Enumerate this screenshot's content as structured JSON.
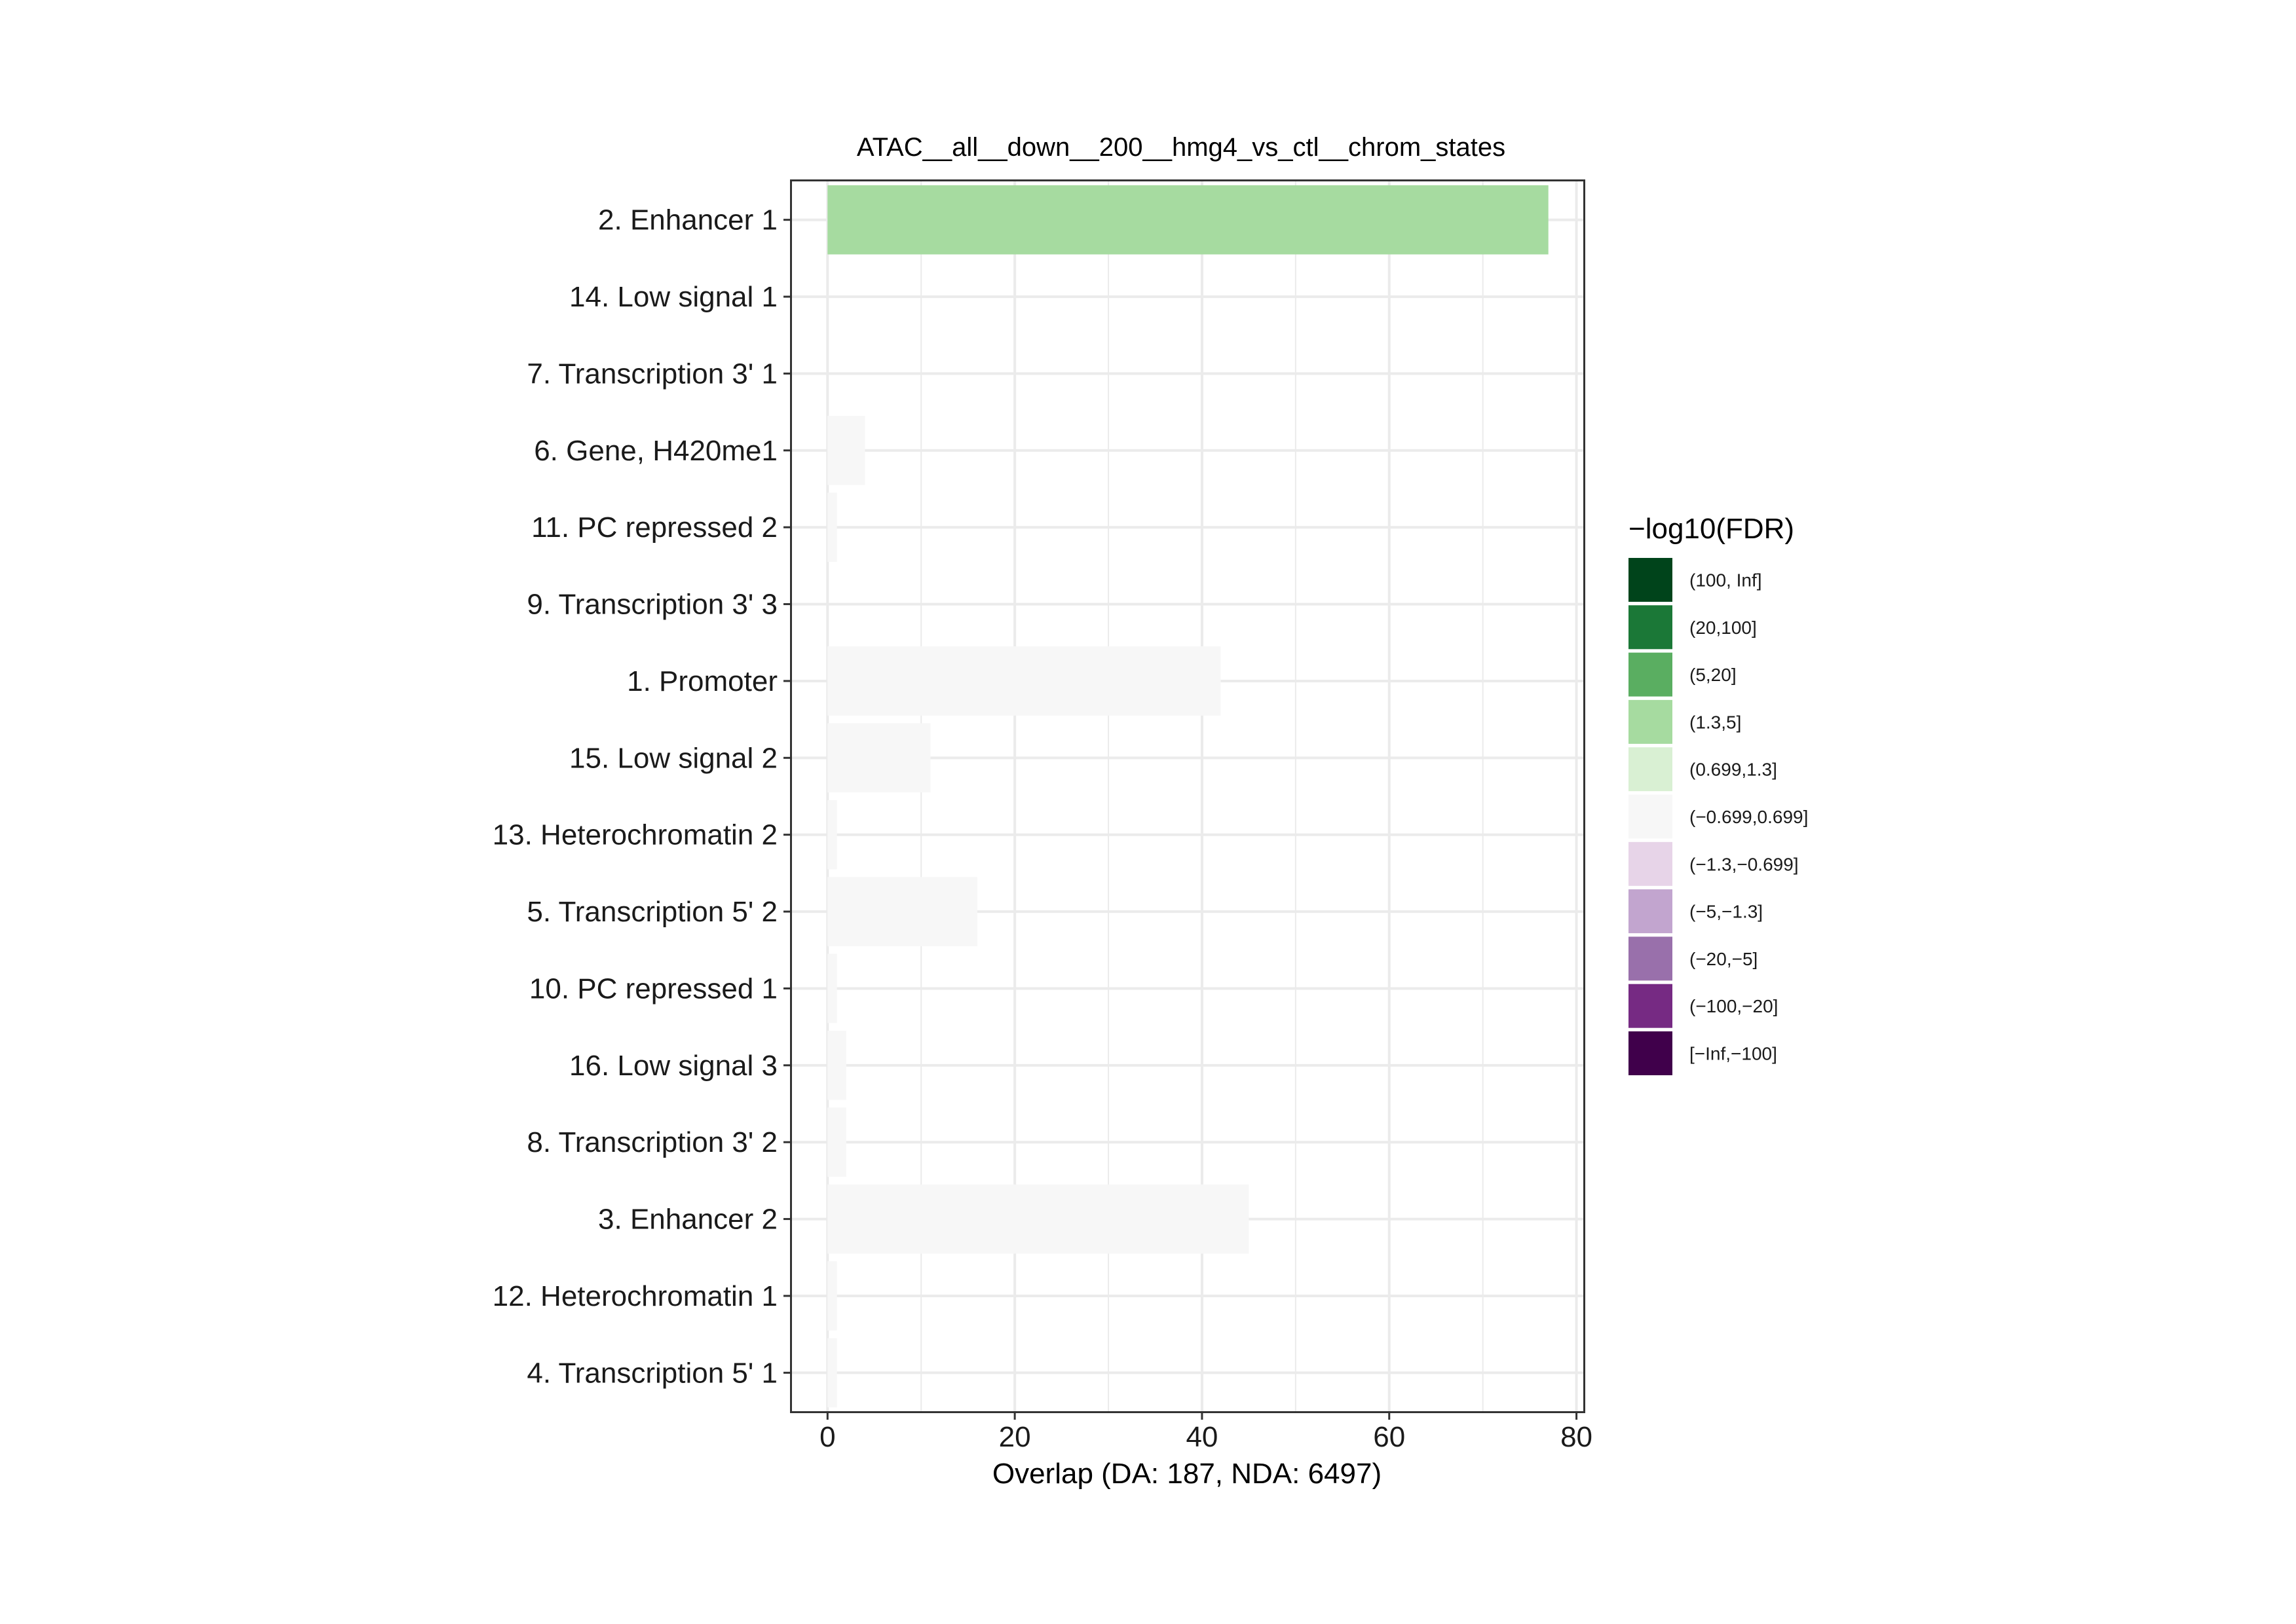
{
  "chart_data": {
    "type": "bar",
    "orientation": "horizontal",
    "title": "ATAC__all__down__200__hmg4_vs_ctl__chrom_states",
    "xlabel": "Overlap (DA: 187, NDA: 6497)",
    "ylabel": "",
    "xlim": [
      -3.8,
      80.8
    ],
    "xticks": [
      0,
      20,
      40,
      60,
      80
    ],
    "grid": true,
    "legend_position": "right",
    "categories": [
      "2. Enhancer 1",
      "14. Low signal 1",
      "7. Transcription 3' 1",
      "6. Gene, H420me1",
      "11. PC repressed 2",
      "9. Transcription 3' 3",
      "1. Promoter",
      "15. Low signal 2",
      "13. Heterochromatin 2",
      "5. Transcription 5' 2",
      "10. PC repressed 1",
      "16. Low signal 3",
      "8. Transcription 3' 2",
      "3. Enhancer 2",
      "12. Heterochromatin 1",
      "4. Transcription 5' 1"
    ],
    "values": [
      77,
      0,
      0,
      4,
      1,
      0,
      42,
      11,
      1,
      16,
      1,
      2,
      2,
      45,
      1,
      1
    ],
    "fdr_bins": [
      "(1.3,5]",
      "(−0.699,0.699]",
      "(−0.699,0.699]",
      "(−0.699,0.699]",
      "(−0.699,0.699]",
      "(−0.699,0.699]",
      "(−0.699,0.699]",
      "(−0.699,0.699]",
      "(−0.699,0.699]",
      "(−0.699,0.699]",
      "(−0.699,0.699]",
      "(−0.699,0.699]",
      "(−0.699,0.699]",
      "(−0.699,0.699]",
      "(−0.699,0.699]",
      "(−0.699,0.699]"
    ],
    "legend": {
      "title": "−log10(FDR)",
      "entries": [
        {
          "label": "(100, Inf]",
          "color": "#00441b"
        },
        {
          "label": "(20,100]",
          "color": "#1b7837"
        },
        {
          "label": "(5,20]",
          "color": "#5aae61"
        },
        {
          "label": "(1.3,5]",
          "color": "#a6dba0"
        },
        {
          "label": "(0.699,1.3]",
          "color": "#d9f0d3"
        },
        {
          "label": "(−0.699,0.699]",
          "color": "#f7f7f7"
        },
        {
          "label": "(−1.3,−0.699]",
          "color": "#e7d4e8"
        },
        {
          "label": "(−5,−1.3]",
          "color": "#c2a5cf"
        },
        {
          "label": "(−20,−5]",
          "color": "#9970ab"
        },
        {
          "label": "(−100,−20]",
          "color": "#762a83"
        },
        {
          "label": "[−Inf,−100]",
          "color": "#40004b"
        }
      ]
    }
  }
}
